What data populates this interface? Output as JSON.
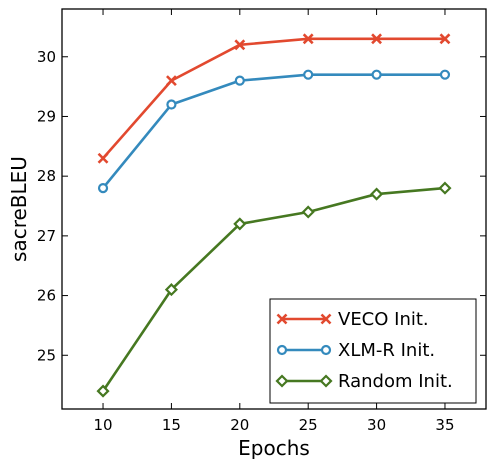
{
  "chart_data": {
    "type": "line",
    "xlabel": "Epochs",
    "ylabel": "sacreBLEU",
    "x": [
      10,
      15,
      20,
      25,
      30,
      35
    ],
    "xlim": [
      7,
      38
    ],
    "ylim": [
      24.1,
      30.8
    ],
    "xticks": [
      10,
      15,
      20,
      25,
      30,
      35
    ],
    "yticks": [
      25,
      26,
      27,
      28,
      29,
      30
    ],
    "grid": false,
    "legend_position": "bottom-right",
    "series": [
      {
        "name": "VECO Init.",
        "values": [
          28.3,
          29.6,
          30.2,
          30.3,
          30.3,
          30.3
        ],
        "color": "#e2492f",
        "marker": "x"
      },
      {
        "name": "XLM-R Init.",
        "values": [
          27.8,
          29.2,
          29.6,
          29.7,
          29.7,
          29.7
        ],
        "color": "#348abd",
        "marker": "circle"
      },
      {
        "name": "Random Init.",
        "values": [
          24.4,
          26.1,
          27.2,
          27.4,
          27.7,
          27.8
        ],
        "color": "#467821",
        "marker": "diamond"
      }
    ]
  }
}
